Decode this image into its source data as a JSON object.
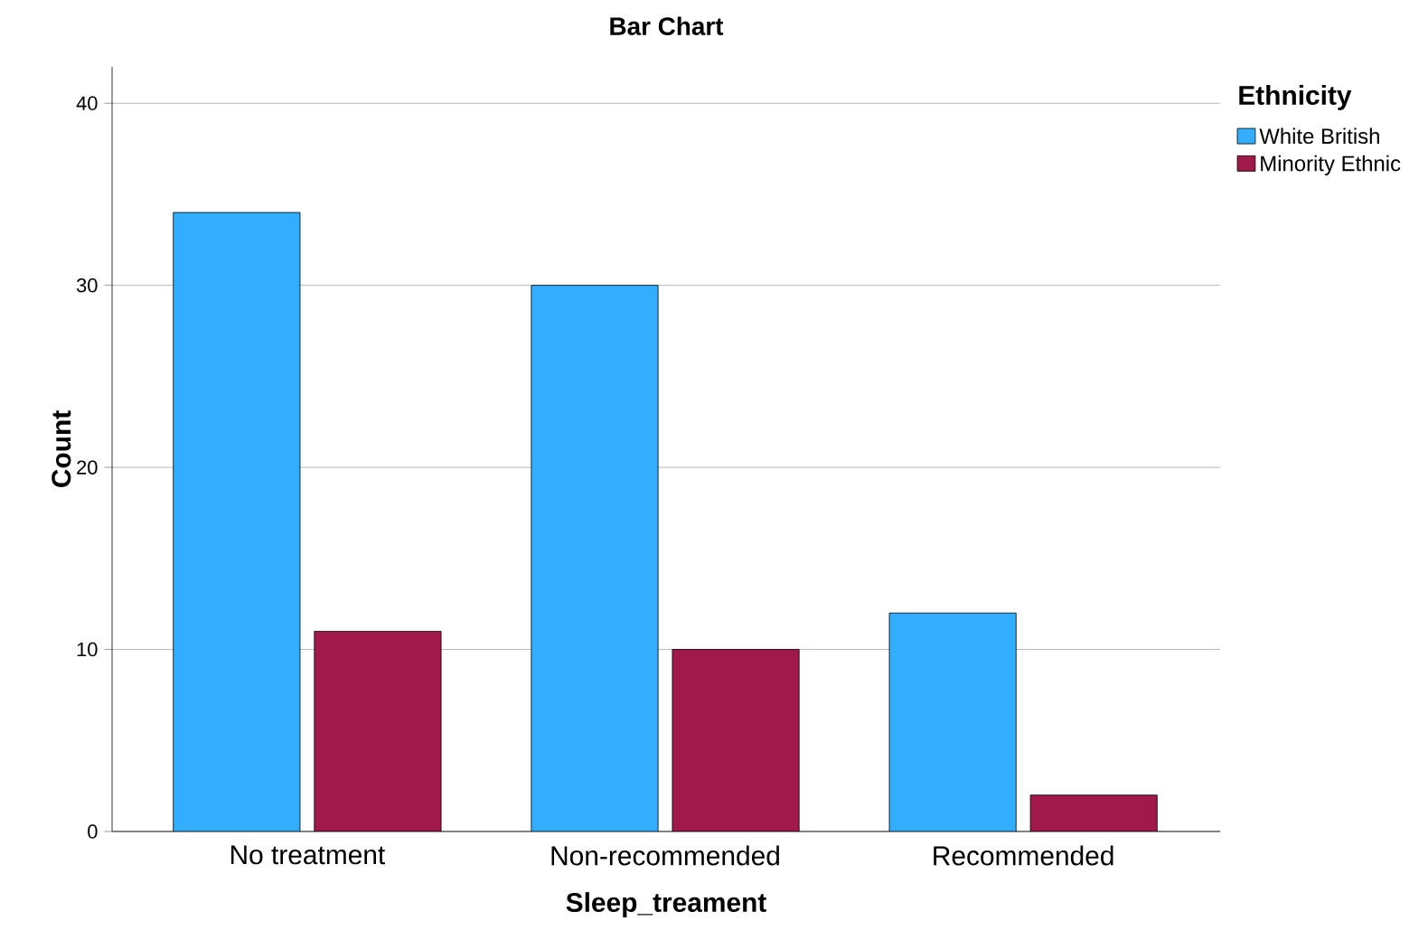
{
  "chart_data": {
    "type": "bar",
    "title": "Bar Chart",
    "xlabel": "Sleep_treament",
    "ylabel": "Count",
    "legend_title": "Ethnicity",
    "categories": [
      "No treatment",
      "Non-recommended",
      "Recommended"
    ],
    "series": [
      {
        "name": "White British",
        "color": "#33adff",
        "values": [
          34,
          30,
          12
        ]
      },
      {
        "name": "Minority Ethnic",
        "color": "#a0194a",
        "values": [
          11,
          10,
          2
        ]
      }
    ],
    "ylim": [
      0,
      42
    ],
    "yticks": [
      0,
      10,
      20,
      30,
      40
    ],
    "grid": "y",
    "legend": "top right"
  }
}
